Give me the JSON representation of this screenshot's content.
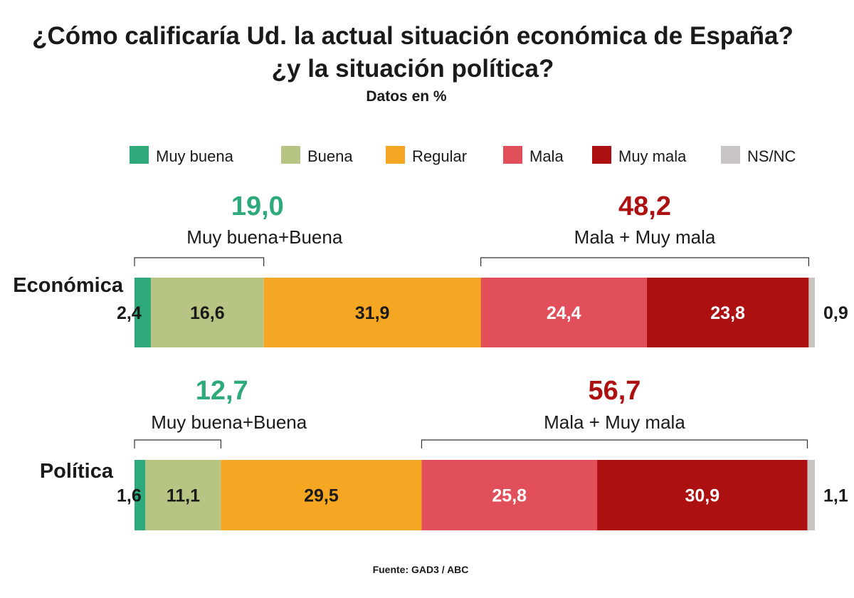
{
  "title_line1": "¿Cómo calificaría Ud. la actual situación económica de España?",
  "title_line2": "¿y la situación política?",
  "subtitle": "Datos en %",
  "source": "Fuente: GAD3  /  ABC",
  "colors": {
    "muy_buena": "#2eaa7a",
    "buena": "#b7c584",
    "regular": "#f5a623",
    "mala": "#e1505a",
    "muy_mala": "#ad1010",
    "nsnc": "#c9c5c4",
    "positive_text": "#2eaa7a",
    "negative_text": "#ad1010"
  },
  "chart_data": {
    "type": "bar",
    "orientation": "horizontal",
    "stacked": true,
    "title": "¿Cómo calificaría Ud. la actual situación económica de España? ¿y la situación política?",
    "unit": "%",
    "legend": [
      "Muy buena",
      "Buena",
      "Regular",
      "Mala",
      "Muy mala",
      "NS/NC"
    ],
    "legend_placement": "top",
    "categories": [
      "Económica",
      "Política"
    ],
    "series": [
      {
        "name": "Muy buena",
        "values": [
          2.4,
          1.6
        ],
        "labels": [
          "2,4",
          "1,6"
        ]
      },
      {
        "name": "Buena",
        "values": [
          16.6,
          11.1
        ],
        "labels": [
          "16,6",
          "11,1"
        ]
      },
      {
        "name": "Regular",
        "values": [
          31.9,
          29.5
        ],
        "labels": [
          "31,9",
          "29,5"
        ]
      },
      {
        "name": "Mala",
        "values": [
          24.4,
          25.8
        ],
        "labels": [
          "24,4",
          "25,8"
        ]
      },
      {
        "name": "Muy mala",
        "values": [
          23.8,
          30.9
        ],
        "labels": [
          "23,8",
          "30,9"
        ]
      },
      {
        "name": "NS/NC",
        "values": [
          0.9,
          1.1
        ],
        "labels": [
          "0,9",
          "1,1"
        ]
      }
    ],
    "annotations": [
      {
        "category": "Económica",
        "positive_total": "19,0",
        "positive_label": "Muy buena+Buena",
        "negative_total": "48,2",
        "negative_label": "Mala + Muy mala"
      },
      {
        "category": "Política",
        "positive_total": "12,7",
        "positive_label": "Muy buena+Buena",
        "negative_total": "56,7",
        "negative_label": "Mala + Muy mala"
      }
    ]
  }
}
